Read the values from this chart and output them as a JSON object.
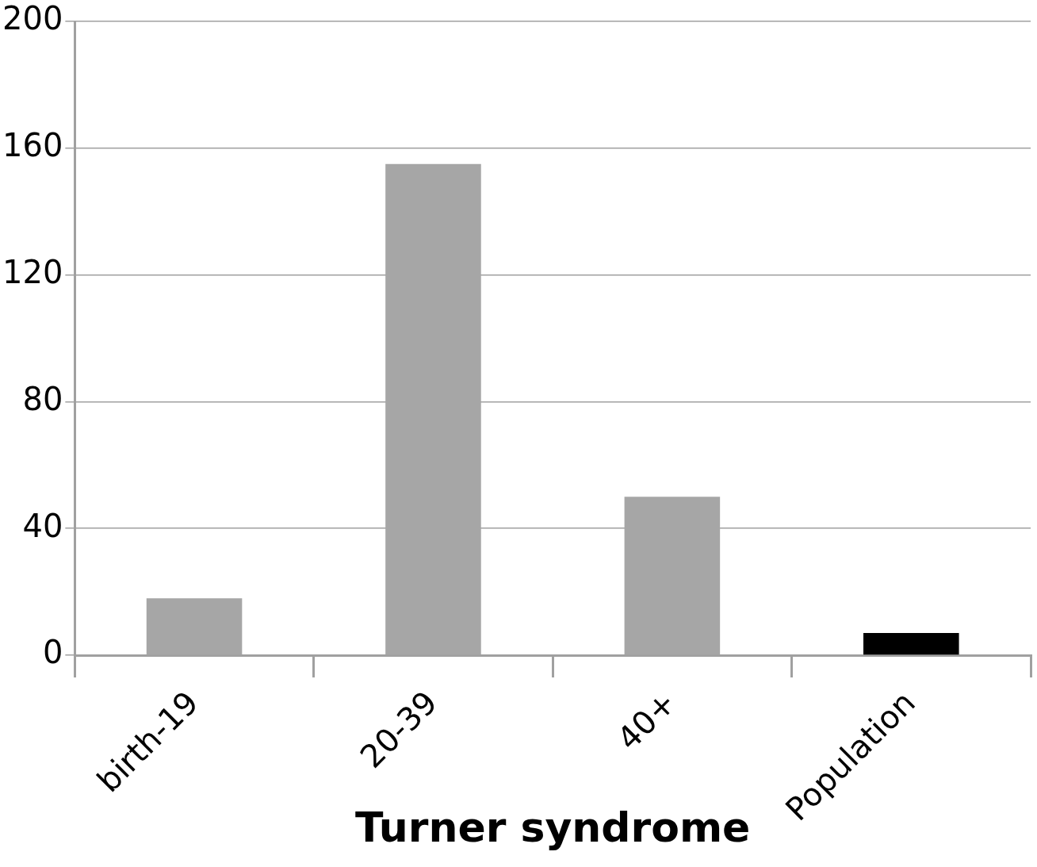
{
  "chart_data": {
    "type": "bar",
    "xlabel": "Turner syndrome",
    "categories": [
      "birth-19",
      "20-39",
      "40+",
      "Population"
    ],
    "values": [
      18,
      155,
      50,
      7
    ],
    "colors": [
      "#a6a6a6",
      "#a6a6a6",
      "#a6a6a6",
      "#000000"
    ],
    "ylim": [
      0,
      200
    ],
    "yticks": [
      0,
      40,
      80,
      120,
      160,
      200
    ],
    "grid": "y",
    "legend": false
  }
}
